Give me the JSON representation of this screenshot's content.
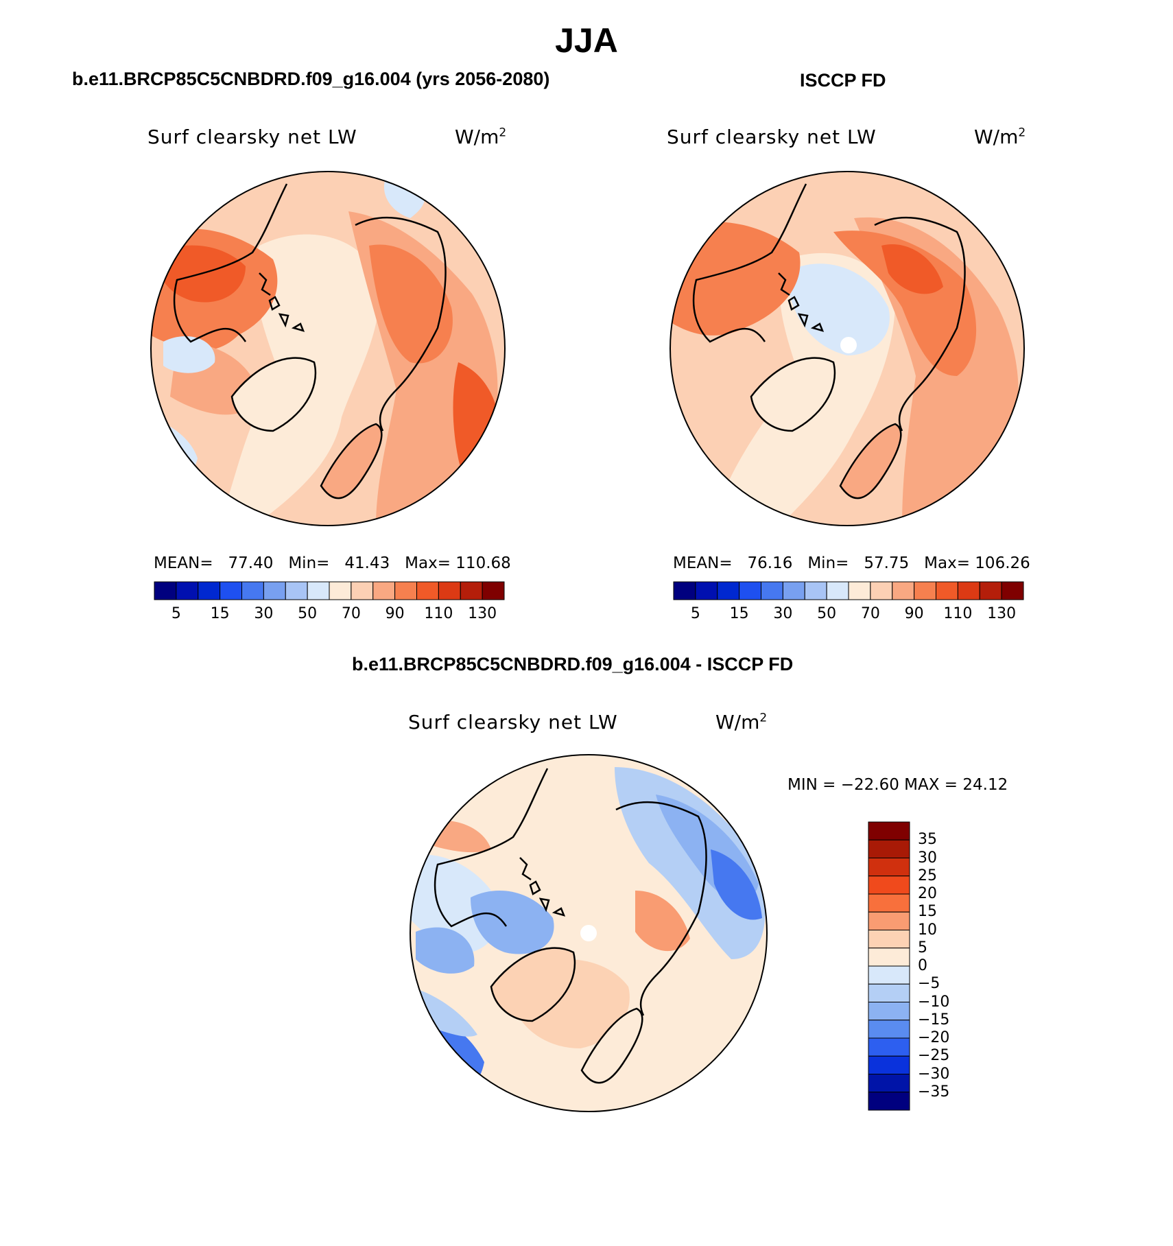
{
  "season": "JJA",
  "panels": {
    "model": {
      "heading": "b.e11.BRCP85C5CNBDRD.f09_g16.004 (yrs 2056-2080)",
      "variable": "Surf clearsky net LW",
      "units_base": "W/m",
      "units_exp": "2",
      "mean_label": "MEAN=",
      "mean": "77.40",
      "min_label": "Min=",
      "min": "41.43",
      "max_label": "Max=",
      "max": "110.68"
    },
    "obs": {
      "heading": "ISCCP FD",
      "variable": "Surf clearsky net LW",
      "units_base": "W/m",
      "units_exp": "2",
      "mean_label": "MEAN=",
      "mean": "76.16",
      "min_label": "Min=",
      "min": "57.75",
      "max_label": "Max=",
      "max": "106.26"
    },
    "diff": {
      "heading": "b.e11.BRCP85C5CNBDRD.f09_g16.004 - ISCCP FD",
      "variable": "Surf clearsky net LW",
      "units_base": "W/m",
      "units_exp": "2",
      "minmax": "MIN = −22.60  MAX =   24.12"
    }
  },
  "colorbars": {
    "abs": {
      "colors": [
        "#00007f",
        "#0010b0",
        "#0028d0",
        "#1e50f0",
        "#4678f0",
        "#78a0f0",
        "#a8c4f5",
        "#d8e8fa",
        "#fdebd8",
        "#fcd0b4",
        "#f9a882",
        "#f6804f",
        "#f05a28",
        "#dc3a14",
        "#b41e0a",
        "#7f0000"
      ],
      "tick_labels": [
        "5",
        "15",
        "30",
        "50",
        "70",
        "90",
        "110",
        "130"
      ]
    },
    "diff": {
      "colors": [
        "#7f0000",
        "#a81a06",
        "#d0300e",
        "#f04a1c",
        "#f8703c",
        "#f99c72",
        "#fcd2b4",
        "#fdebd8",
        "#d8e8fa",
        "#b4cff5",
        "#8cb2f2",
        "#5a8cf0",
        "#2d5ff0",
        "#0a32dc",
        "#0014a8",
        "#00007f"
      ],
      "tick_labels": [
        "35",
        "30",
        "25",
        "20",
        "15",
        "10",
        "5",
        "0",
        "−5",
        "−10",
        "−15",
        "−20",
        "−25",
        "−30",
        "−35"
      ]
    }
  },
  "map_fill": {
    "model_colors": {
      "base": "#fcd0b4",
      "ocean_low": "#fdebd8",
      "warm": "#f9a882",
      "hot": "#f6804f",
      "cool": "#d8e8fa"
    },
    "obs_colors": {
      "base": "#fcd0b4",
      "ocean_low": "#fdebd8",
      "warm": "#f9a882",
      "hot": "#f6804f",
      "cool": "#d8e8fa"
    },
    "diff_colors": {
      "base": "#fdebd8",
      "pos": "#fcd0b4",
      "pos2": "#f9a882",
      "neg": "#d8e8fa",
      "neg2": "#8cb2f2",
      "neg3": "#4678f0"
    }
  }
}
